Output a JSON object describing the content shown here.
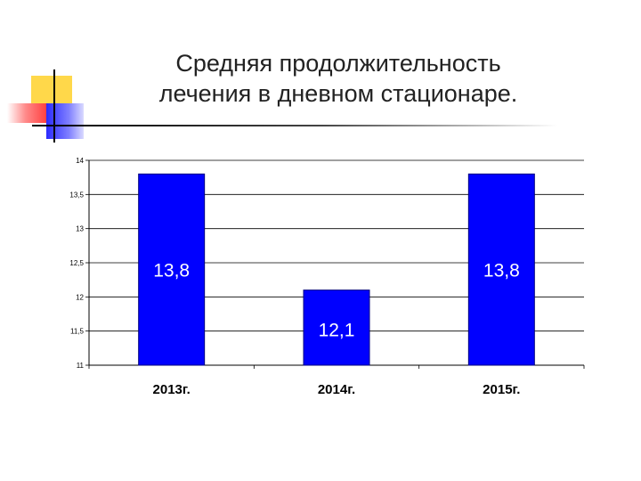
{
  "slide": {
    "title_line1": "Средняя продолжительность",
    "title_line2": "лечения в дневном стационаре."
  },
  "colors": {
    "bar": "#0000ff",
    "bar_stroke": "#000080",
    "grid": "#000000",
    "accent_yellow": "#ffd84a",
    "accent_red": "#ff3b3b",
    "accent_blue": "#2b2bff"
  },
  "chart_data": {
    "type": "bar",
    "categories": [
      "2013г.",
      "2014г.",
      "2015г."
    ],
    "values": [
      13.8,
      12.1,
      13.8
    ],
    "data_labels": [
      "13,8",
      "12,1",
      "13,8"
    ],
    "ylim": [
      11,
      14
    ],
    "yticks": [
      11,
      11.5,
      12,
      12.5,
      13,
      13.5,
      14
    ],
    "ytick_labels": [
      "11",
      "11,5",
      "12",
      "12,5",
      "13",
      "13,5",
      "14"
    ],
    "grid": true,
    "legend": "none",
    "xlabel": "",
    "ylabel": ""
  }
}
